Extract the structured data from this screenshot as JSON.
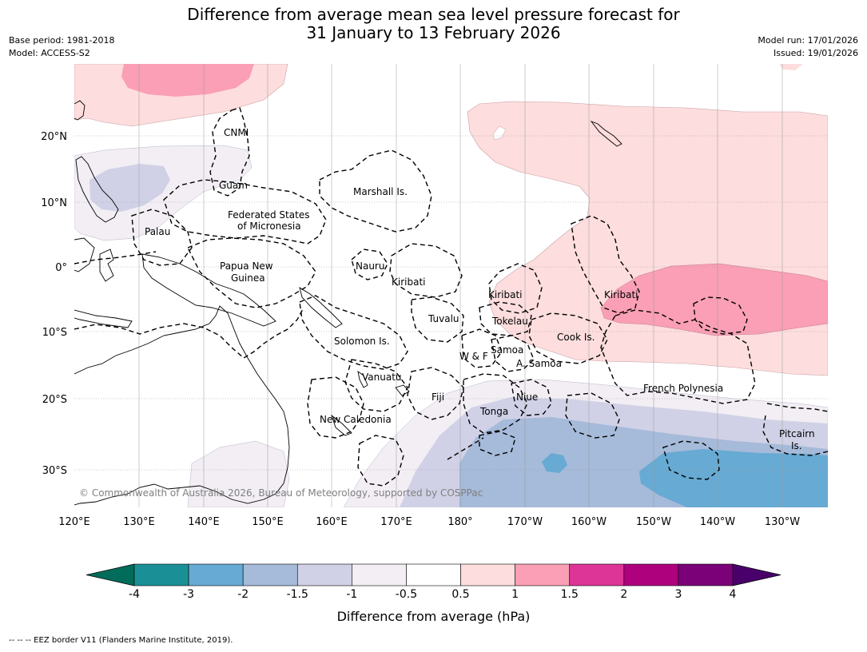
{
  "title_line1": "Difference from average mean sea level pressure forecast for",
  "title_line2": "31 January to 13 February 2026",
  "base_period": "Base period: 1981-2018",
  "model": "Model: ACCESS-S2",
  "model_run": "Model run: 17/01/2026",
  "issued": "Issued: 19/01/2026",
  "copyright": "© Commonwealth of Australia 2026, Bureau of Meteorology, supported by COSPPac",
  "footer": "--  --  -- EEZ border V11 (Flanders Marine Institute, 2019).",
  "lon_labels": [
    "120°E",
    "130°E",
    "140°E",
    "150°E",
    "160°E",
    "170°E",
    "180°",
    "170°W",
    "160°W",
    "150°W",
    "140°W",
    "130°W"
  ],
  "lat_labels": [
    "20°N",
    "10°N",
    "0°",
    "10°S",
    "20°S",
    "30°S"
  ],
  "places": [
    "CNMI",
    "Guam",
    "Marshall Is.",
    "Federated States",
    "of Micronesia",
    "Palau",
    "Papua New",
    "Guinea",
    "Nauru",
    "Kiribati",
    "Kiribati",
    "Kiribati",
    "Tuvalu",
    "Tokelau",
    "Cook Is.",
    "Solomon Is.",
    "Samoa",
    "W & F",
    "A. Samoa",
    "Vanuatu",
    "Fiji",
    "Niue",
    "Tonga",
    "French Polynesia",
    "New Caledonia",
    "Pitcairn",
    "Is."
  ],
  "colorbar": {
    "title": "Difference from average (hPa)",
    "ticks": [
      "-4",
      "-3",
      "-2",
      "-1.5",
      "-1",
      "-0.5",
      "0.5",
      "1",
      "1.5",
      "2",
      "3",
      "4"
    ],
    "colors": [
      "#1a9096",
      "#67aad3",
      "#a6bad9",
      "#d0d1e6",
      "#f2eef4",
      "#ffffff",
      "#fddddd",
      "#fa9fb5",
      "#dd3497",
      "#ae017e",
      "#7a0177"
    ],
    "min_color": "#016c59",
    "max_color": "#49006a"
  },
  "colors": {
    "land_outline": "#000000",
    "eez_border": "#000000",
    "grid": "#9a9a9a"
  }
}
